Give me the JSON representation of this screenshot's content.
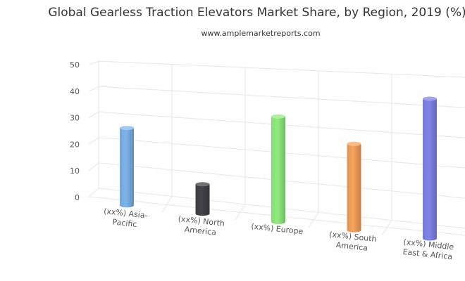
{
  "chart_data": {
    "type": "bar",
    "title": "Global Gearless Traction Elevators Market Share, by Region, 2019 (%)",
    "subtitle": "www.amplemarketreports.com",
    "categories": [
      [
        "(xx%) Asia-",
        "Pacific"
      ],
      [
        "(xx%) North",
        "America"
      ],
      [
        "(xx%) Europe"
      ],
      [
        "(xx%) South",
        "America"
      ],
      [
        "(xx%) Middle",
        "East & Africa"
      ]
    ],
    "values": [
      30,
      11,
      38,
      30,
      47
    ],
    "colors": [
      "#7cb5ec",
      "#434348",
      "#90ed7d",
      "#f7a35c",
      "#8085e9"
    ],
    "ylim": [
      0,
      50
    ],
    "yticks": [
      0,
      10,
      20,
      30,
      40,
      50
    ],
    "xlabel": "",
    "ylabel": "",
    "grid": true,
    "legend": "none",
    "style": "3d-cylinder"
  }
}
